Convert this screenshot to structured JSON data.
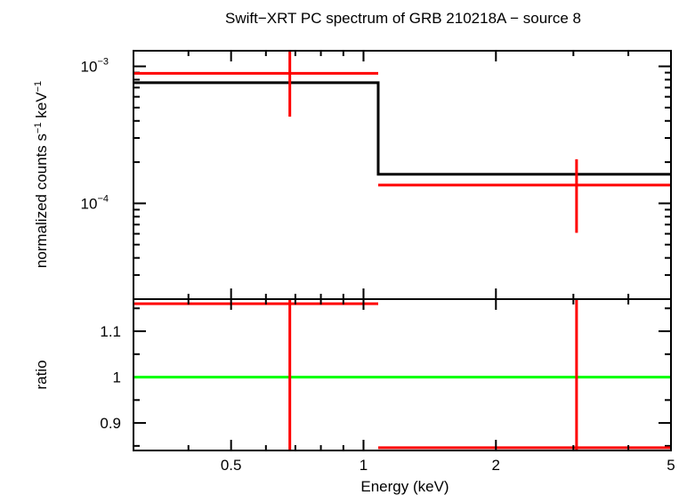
{
  "chart_data": {
    "type": "scatter",
    "title": "Swift−XRT PC spectrum of GRB 210218A − source 8",
    "xlabel": "Energy (keV)",
    "x_scale": "log",
    "xlim": [
      0.3,
      5
    ],
    "x_ticks": [
      {
        "value": 0.5,
        "label": "0.5"
      },
      {
        "value": 1,
        "label": "1"
      },
      {
        "value": 2,
        "label": "2"
      },
      {
        "value": 5,
        "label": "5"
      }
    ],
    "colors": {
      "data": "#ff0000",
      "model": "#000000",
      "unity": "#00ff00",
      "frame": "#000000"
    },
    "panels": [
      {
        "name": "spectrum",
        "ylabel_parts": [
          "normalized counts s",
          "−1",
          " keV",
          "−1"
        ],
        "y_scale": "log",
        "ylim": [
          2e-05,
          0.0013
        ],
        "y_ticks": [
          {
            "value": 0.001,
            "base": "10",
            "exp": "−3"
          },
          {
            "value": 0.0001,
            "base": "10",
            "exp": "−4"
          }
        ],
        "data": [
          {
            "x": 0.68,
            "xlo": 0.3,
            "xhi": 1.08,
            "y": 0.00089,
            "ylo": 0.00043,
            "yhi": 0.00135
          },
          {
            "x": 3.05,
            "xlo": 1.08,
            "xhi": 5.0,
            "y": 0.000136,
            "ylo": 6.1e-05,
            "yhi": 0.00021
          }
        ],
        "model": [
          {
            "xlo": 0.3,
            "xhi": 1.08,
            "y": 0.00076
          },
          {
            "xlo": 1.08,
            "xhi": 5.0,
            "y": 0.000163
          }
        ]
      },
      {
        "name": "ratio",
        "ylabel": "ratio",
        "y_scale": "linear",
        "ylim": [
          0.84,
          1.17
        ],
        "y_ticks": [
          {
            "value": 0.9,
            "label": "0.9"
          },
          {
            "value": 1.0,
            "label": "1"
          },
          {
            "value": 1.1,
            "label": "1.1"
          }
        ],
        "unity": 1.0,
        "data": [
          {
            "x": 0.68,
            "xlo": 0.3,
            "xhi": 1.08,
            "y": 1.16,
            "ylo": 0.84,
            "yhi": 1.17
          },
          {
            "x": 3.05,
            "xlo": 1.08,
            "xhi": 5.0,
            "y": 0.846,
            "ylo": 0.84,
            "yhi": 1.17
          }
        ]
      }
    ]
  }
}
